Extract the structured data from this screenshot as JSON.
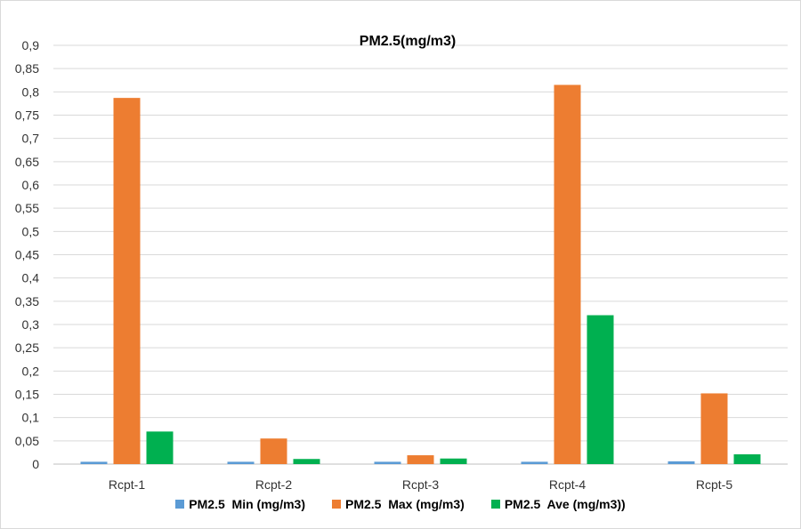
{
  "chart_data": {
    "type": "bar",
    "title": "PM2.5(mg/m3)",
    "xlabel": "",
    "ylabel": "",
    "categories": [
      "Rcpt-1",
      "Rcpt-2",
      "Rcpt-3",
      "Rcpt-4",
      "Rcpt-5"
    ],
    "series": [
      {
        "name": "PM2.5  Min (mg/m3)",
        "color": "#5b9bd5",
        "values": [
          0.005,
          0.005,
          0.005,
          0.005,
          0.006
        ]
      },
      {
        "name": "PM2.5  Max (mg/m3)",
        "color": "#ed7d31",
        "values": [
          0.787,
          0.055,
          0.019,
          0.815,
          0.152
        ]
      },
      {
        "name": "PM2.5  Ave (mg/m3))",
        "color": "#00b050",
        "values": [
          0.07,
          0.011,
          0.012,
          0.32,
          0.021
        ]
      }
    ],
    "ylim": [
      0,
      0.9
    ],
    "yticks": [
      "0",
      "0,05",
      "0,1",
      "0,15",
      "0,2",
      "0,25",
      "0,3",
      "0,35",
      "0,4",
      "0,45",
      "0,5",
      "0,55",
      "0,6",
      "0,65",
      "0,7",
      "0,75",
      "0,8",
      "0,85",
      "0,9"
    ],
    "grid": true,
    "legend_position": "bottom"
  }
}
